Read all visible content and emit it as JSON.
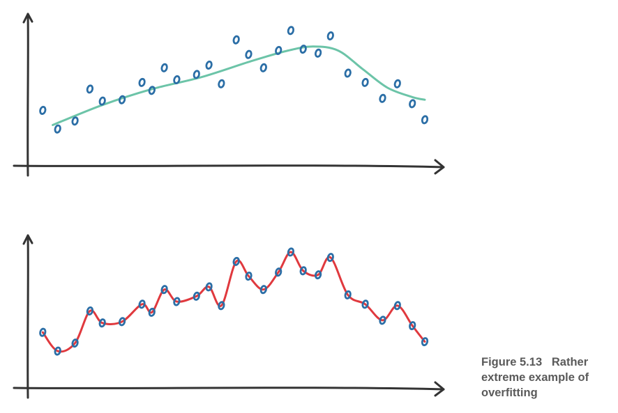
{
  "caption": {
    "label": "Figure 5.13",
    "text": "Rather extreme example of overfitting"
  },
  "colors": {
    "axis": "#333333",
    "points": "#2b6ea6",
    "smooth_fit": "#6cc4a8",
    "overfit": "#e0393e"
  },
  "chart_data": [
    {
      "type": "scatter",
      "title": "",
      "xlabel": "",
      "ylabel": "",
      "xlim": [
        0,
        20
      ],
      "ylim": [
        0,
        10
      ],
      "grid": false,
      "series": [
        {
          "x": [
            0.6,
            1.2,
            1.9,
            2.5,
            3.0,
            3.8,
            4.6,
            5.0,
            5.5,
            6.0,
            6.8,
            7.3,
            7.8,
            8.4,
            8.9,
            9.5,
            10.1,
            10.6,
            11.1,
            11.7,
            12.2,
            12.9,
            13.6,
            14.3,
            14.9,
            15.5,
            16.0
          ],
          "y": [
            2.8,
            1.4,
            2.0,
            4.4,
            3.5,
            3.6,
            4.9,
            4.3,
            6.0,
            5.1,
            5.5,
            6.2,
            4.8,
            8.1,
            7.0,
            6.0,
            7.3,
            8.8,
            7.4,
            7.1,
            8.4,
            5.6,
            4.9,
            3.7,
            4.8,
            3.3,
            2.1
          ]
        },
        {
          "type": "line",
          "x": [
            1.0,
            3.0,
            5.0,
            7.0,
            9.0,
            10.5,
            11.5,
            12.5,
            13.5,
            14.5,
            15.5,
            16.0
          ],
          "y": [
            1.7,
            3.2,
            4.4,
            5.3,
            6.5,
            7.3,
            7.6,
            7.3,
            5.9,
            4.5,
            3.8,
            3.6
          ]
        }
      ]
    },
    {
      "type": "scatter",
      "title": "",
      "xlabel": "",
      "ylabel": "",
      "xlim": [
        0,
        20
      ],
      "ylim": [
        0,
        10
      ],
      "grid": false,
      "series": [
        {
          "x": [
            0.6,
            1.2,
            1.9,
            2.5,
            3.0,
            3.8,
            4.6,
            5.0,
            5.5,
            6.0,
            6.8,
            7.3,
            7.8,
            8.4,
            8.9,
            9.5,
            10.1,
            10.6,
            11.1,
            11.7,
            12.2,
            12.9,
            13.6,
            14.3,
            14.9,
            15.5,
            16.0
          ],
          "y": [
            2.8,
            1.4,
            2.0,
            4.4,
            3.5,
            3.6,
            4.9,
            4.3,
            6.0,
            5.1,
            5.5,
            6.2,
            4.8,
            8.1,
            7.0,
            6.0,
            7.3,
            8.8,
            7.4,
            7.1,
            8.4,
            5.6,
            4.9,
            3.7,
            4.8,
            3.3,
            2.1
          ]
        },
        {
          "type": "line",
          "x": [
            0.6,
            1.2,
            1.9,
            2.5,
            3.0,
            3.8,
            4.6,
            5.0,
            5.5,
            6.0,
            6.8,
            7.3,
            7.8,
            8.4,
            8.9,
            9.5,
            10.1,
            10.6,
            11.1,
            11.7,
            12.2,
            12.9,
            13.6,
            14.3,
            14.9,
            15.5,
            16.0
          ],
          "y": [
            2.8,
            1.4,
            2.0,
            4.4,
            3.5,
            3.6,
            4.9,
            4.3,
            6.0,
            5.1,
            5.5,
            6.2,
            4.8,
            8.1,
            7.0,
            6.0,
            7.3,
            8.8,
            7.4,
            7.1,
            8.4,
            5.6,
            4.9,
            3.7,
            4.8,
            3.3,
            2.1
          ]
        }
      ]
    }
  ]
}
